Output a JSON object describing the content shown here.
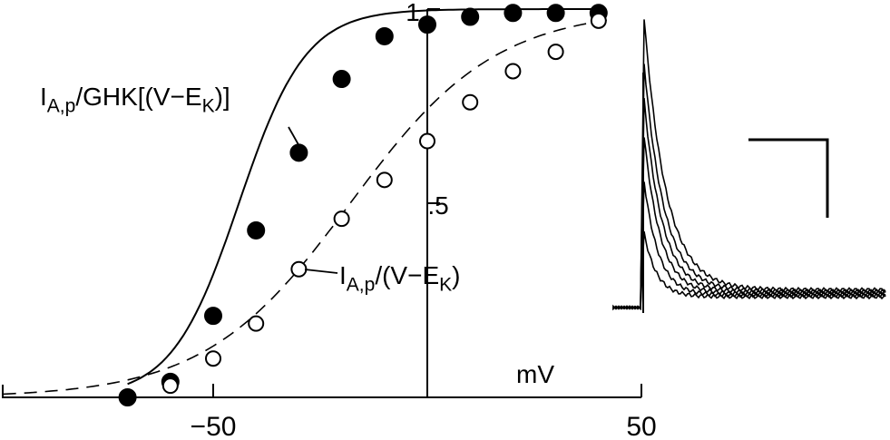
{
  "chart_data": {
    "type": "scatter",
    "xlabel": "mV",
    "xlim": [
      -100,
      50
    ],
    "ylim": [
      0,
      1
    ],
    "x_ticks": [
      {
        "value": -50,
        "label": "−50"
      },
      {
        "value": 50,
        "label": "50"
      }
    ],
    "y_ticks": [
      {
        "value": 0.5,
        "label": ".5"
      },
      {
        "value": 1,
        "label": "1"
      }
    ],
    "grid": false,
    "series": [
      {
        "name": "I_A,p/GHK[(V−E_K)]",
        "marker": "filled-circle",
        "fit_line": "solid",
        "x": [
          -70,
          -60,
          -50,
          -40,
          -30,
          -20,
          -10,
          0,
          10,
          20,
          30,
          40
        ],
        "y": [
          0.0,
          0.04,
          0.21,
          0.43,
          0.63,
          0.82,
          0.93,
          0.96,
          0.98,
          0.99,
          0.99,
          0.99
        ]
      },
      {
        "name": "I_A,p/(V−E_K)",
        "marker": "open-circle",
        "fit_line": "dashed",
        "x": [
          -60,
          -50,
          -40,
          -30,
          -20,
          -10,
          0,
          10,
          20,
          30,
          40
        ],
        "y": [
          0.03,
          0.1,
          0.19,
          0.33,
          0.46,
          0.56,
          0.66,
          0.76,
          0.84,
          0.89,
          0.97
        ]
      }
    ],
    "annotations": {
      "filled": {
        "main": "I",
        "sub": "A,p",
        "mid": "/GHK[(V−E",
        "sub2": "K",
        "end": ")]"
      },
      "open": {
        "main": "I",
        "sub": "A,p",
        "mid": "/(V−E",
        "sub2": "K",
        "end": ")"
      }
    },
    "inset": {
      "type": "current-traces",
      "trace_count": 6
    }
  }
}
